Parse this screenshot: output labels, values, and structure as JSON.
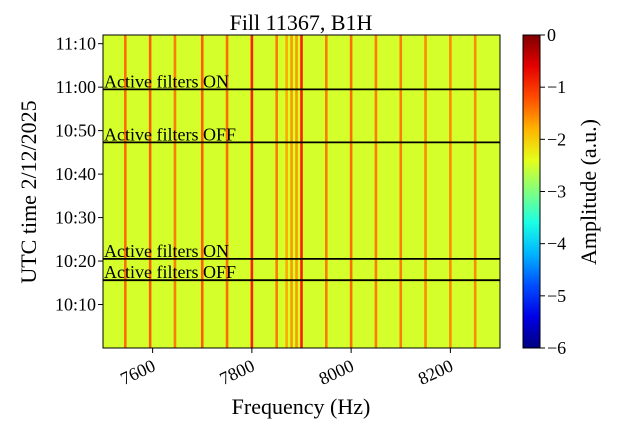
{
  "chart_data": {
    "type": "heatmap",
    "title": "Fill 11367, B1H",
    "xlabel": "Frequency (Hz)",
    "ylabel": "UTC time 2/12/2025",
    "colorbar_label": "Amplitude (a.u.)",
    "colormap": "jet",
    "xlim": [
      7500,
      8300
    ],
    "xticks": [
      7600,
      7800,
      8000,
      8200
    ],
    "ylim": [
      600,
      672
    ],
    "yticks": [
      {
        "value": 610,
        "label": "10:10"
      },
      {
        "value": 620,
        "label": "10:20"
      },
      {
        "value": 630,
        "label": "10:30"
      },
      {
        "value": 640,
        "label": "10:40"
      },
      {
        "value": 650,
        "label": "10:50"
      },
      {
        "value": 660,
        "label": "11:00"
      },
      {
        "value": 670,
        "label": "11:10"
      }
    ],
    "clim": [
      -6,
      0
    ],
    "cticks": [
      {
        "value": -6,
        "label": "−6"
      },
      {
        "value": -5,
        "label": "−5"
      },
      {
        "value": -4,
        "label": "−4"
      },
      {
        "value": -3,
        "label": "−3"
      },
      {
        "value": -2,
        "label": "−2"
      },
      {
        "value": -1,
        "label": "−1"
      },
      0
    ],
    "background": -2.5,
    "x": [
      7545,
      7595,
      7645,
      7700,
      7750,
      7800,
      7850,
      7870,
      7880,
      7890,
      7900,
      7950,
      8000,
      8050,
      8100,
      8150,
      8200,
      8250
    ],
    "values": [
      -1.3,
      -1.2,
      -1.4,
      -1.2,
      -1.3,
      -0.8,
      -1.4,
      -1.7,
      -1.6,
      -1.6,
      -0.8,
      -1.4,
      -1.3,
      -1.4,
      -1.4,
      -1.5,
      -1.5,
      -1.5
    ],
    "annotations": [
      {
        "text": "Active filters ON",
        "y": 659.5,
        "color": "#e01010"
      },
      {
        "text": "Active filters OFF",
        "y": 647.3,
        "color": "#2a9a2a"
      },
      {
        "text": "Active filters ON",
        "y": 620.5,
        "color": "#e01010"
      },
      {
        "text": "Active filters OFF",
        "y": 615.6,
        "color": "#2a9a2a"
      }
    ]
  }
}
